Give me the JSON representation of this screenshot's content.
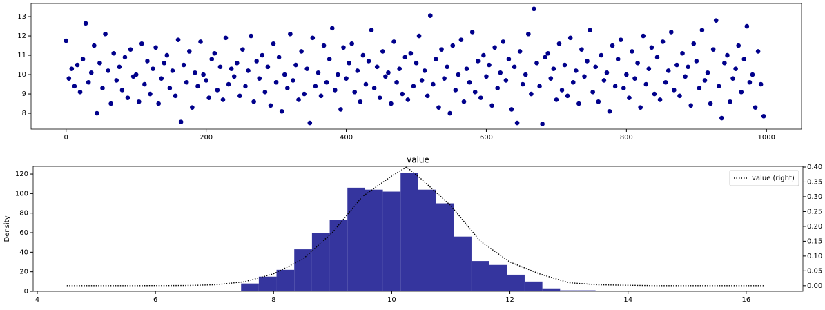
{
  "chart_data": [
    {
      "type": "scatter",
      "color": "#00008b",
      "x": [
        0,
        4,
        8,
        12,
        16,
        20,
        24,
        28,
        32,
        36,
        40,
        44,
        48,
        52,
        56,
        60,
        64,
        68,
        72,
        76,
        80,
        84,
        88,
        92,
        96,
        100,
        104,
        108,
        112,
        116,
        120,
        124,
        128,
        132,
        136,
        140,
        144,
        148,
        152,
        156,
        160,
        164,
        168,
        172,
        176,
        180,
        184,
        188,
        192,
        196,
        200,
        204,
        208,
        212,
        216,
        220,
        224,
        228,
        232,
        236,
        240,
        244,
        248,
        252,
        256,
        260,
        264,
        268,
        272,
        276,
        280,
        284,
        288,
        292,
        296,
        300,
        304,
        308,
        312,
        316,
        320,
        324,
        328,
        332,
        336,
        340,
        344,
        348,
        352,
        356,
        360,
        364,
        368,
        372,
        376,
        380,
        384,
        388,
        392,
        396,
        400,
        404,
        408,
        412,
        416,
        420,
        424,
        428,
        432,
        436,
        440,
        444,
        448,
        452,
        456,
        460,
        464,
        468,
        472,
        476,
        480,
        484,
        488,
        492,
        496,
        500,
        504,
        508,
        512,
        516,
        520,
        524,
        528,
        532,
        536,
        540,
        544,
        548,
        552,
        556,
        560,
        564,
        568,
        572,
        576,
        580,
        584,
        588,
        592,
        596,
        600,
        604,
        608,
        612,
        616,
        620,
        624,
        628,
        632,
        636,
        640,
        644,
        648,
        652,
        656,
        660,
        664,
        668,
        672,
        676,
        680,
        684,
        688,
        692,
        696,
        700,
        704,
        708,
        712,
        716,
        720,
        724,
        728,
        732,
        736,
        740,
        744,
        748,
        752,
        756,
        760,
        764,
        768,
        772,
        776,
        780,
        784,
        788,
        792,
        796,
        800,
        804,
        808,
        812,
        816,
        820,
        824,
        828,
        832,
        836,
        840,
        844,
        848,
        852,
        856,
        860,
        864,
        868,
        872,
        876,
        880,
        884,
        888,
        892,
        896,
        900,
        904,
        908,
        912,
        916,
        920,
        924,
        928,
        932,
        936,
        940,
        944,
        948,
        952,
        956,
        960,
        964,
        968,
        972,
        976,
        980,
        984,
        988,
        992,
        996
      ],
      "values": [
        11.75,
        9.8,
        10.3,
        9.4,
        10.5,
        9.1,
        10.8,
        12.65,
        9.6,
        10.1,
        11.5,
        8.0,
        10.6,
        9.3,
        12.1,
        10.2,
        8.5,
        11.1,
        9.7,
        10.4,
        9.2,
        10.9,
        8.8,
        11.3,
        9.9,
        10.0,
        8.6,
        11.6,
        9.5,
        10.7,
        9.0,
        10.3,
        11.4,
        8.5,
        9.8,
        10.6,
        11.0,
        9.3,
        10.2,
        8.9,
        11.8,
        7.55,
        10.5,
        9.6,
        11.2,
        8.3,
        10.1,
        9.4,
        11.7,
        10.0,
        9.7,
        8.8,
        10.8,
        11.1,
        9.2,
        10.4,
        8.7,
        11.9,
        9.5,
        10.3,
        9.9,
        10.6,
        8.9,
        11.3,
        9.4,
        10.2,
        12.0,
        8.6,
        10.7,
        9.8,
        11.0,
        9.1,
        10.4,
        8.4,
        11.6,
        9.6,
        10.9,
        8.1,
        10.0,
        9.3,
        12.1,
        9.7,
        10.5,
        8.7,
        11.2,
        9.0,
        10.3,
        7.5,
        11.9,
        9.4,
        10.1,
        8.9,
        11.5,
        9.6,
        10.8,
        12.4,
        9.2,
        10.0,
        8.2,
        11.4,
        9.8,
        10.6,
        11.6,
        9.1,
        10.2,
        8.6,
        11.0,
        9.5,
        10.7,
        12.3,
        9.3,
        10.4,
        8.8,
        11.2,
        9.9,
        10.1,
        8.5,
        11.7,
        9.6,
        10.3,
        9.0,
        10.9,
        8.7,
        11.1,
        9.4,
        10.6,
        12.0,
        9.7,
        10.2,
        8.9,
        13.05,
        9.5,
        10.8,
        8.3,
        11.3,
        9.8,
        10.4,
        8.0,
        11.5,
        9.2,
        10.0,
        11.8,
        8.6,
        10.3,
        9.6,
        12.2,
        9.1,
        10.7,
        8.8,
        11.0,
        9.9,
        10.5,
        8.4,
        11.4,
        9.3,
        10.1,
        11.7,
        9.7,
        10.8,
        8.2,
        10.4,
        7.5,
        11.2,
        9.5,
        10.0,
        12.1,
        9.0,
        13.4,
        10.6,
        9.4,
        7.45,
        10.9,
        11.1,
        9.8,
        10.3,
        8.7,
        11.6,
        9.2,
        10.5,
        8.9,
        11.9,
        9.6,
        10.2,
        8.5,
        11.3,
        9.9,
        10.7,
        12.3,
        9.1,
        10.4,
        8.6,
        11.0,
        9.7,
        10.1,
        8.1,
        11.5,
        9.4,
        10.8,
        11.8,
        9.3,
        10.0,
        8.8,
        11.2,
        9.8,
        10.6,
        8.3,
        12.0,
        9.5,
        10.3,
        11.4,
        9.0,
        10.9,
        8.7,
        11.7,
        9.6,
        10.2,
        12.2,
        9.2,
        10.5,
        8.9,
        11.1,
        9.9,
        10.4,
        8.4,
        11.6,
        10.7,
        9.3,
        12.3,
        9.7,
        10.1,
        8.5,
        11.3,
        12.8,
        9.4,
        7.75,
        10.6,
        11.0,
        8.6,
        9.8,
        10.3,
        11.5,
        9.1,
        10.8,
        12.5,
        9.6,
        10.0,
        8.3,
        11.2,
        9.5,
        7.85
      ],
      "xlim": [
        -50,
        1050
      ],
      "xticks": [
        0,
        200,
        400,
        600,
        800,
        1000
      ],
      "ylim": [
        7.18,
        13.68
      ],
      "yticks": [
        8,
        9,
        10,
        11,
        12,
        13
      ]
    },
    {
      "type": "histogram",
      "title": "value",
      "ylabel": "Density",
      "color": "#35359e",
      "bins": [
        7.45,
        7.75,
        8.05,
        8.35,
        8.65,
        8.95,
        9.25,
        9.55,
        9.85,
        10.15,
        10.45,
        10.75,
        11.05,
        11.35,
        11.65,
        11.95,
        12.25,
        12.55,
        12.85,
        13.15,
        13.45
      ],
      "counts": [
        8,
        15,
        22,
        43,
        60,
        73,
        106,
        104,
        102,
        121,
        104,
        90,
        56,
        31,
        27,
        17,
        10,
        3,
        1,
        1
      ],
      "xlim": [
        3.93,
        16.96
      ],
      "xticks": [
        4,
        6,
        8,
        10,
        12,
        14,
        16
      ],
      "ylim": [
        0,
        127.8
      ],
      "yticks": [
        0,
        20,
        40,
        60,
        80,
        100,
        120
      ],
      "y2lim": [
        -0.019,
        0.4023
      ],
      "y2ticks": [
        {
          "value": 0,
          "label": "0.00"
        },
        {
          "value": 0.05,
          "label": "0.05"
        },
        {
          "value": 0.1,
          "label": "0.10"
        },
        {
          "value": 0.15,
          "label": "0.15"
        },
        {
          "value": 0.2,
          "label": "0.20"
        },
        {
          "value": 0.25,
          "label": "0.25"
        },
        {
          "value": 0.3,
          "label": "0.30"
        },
        {
          "value": 0.35,
          "label": "0.35"
        },
        {
          "value": 0.4,
          "label": "0.40"
        }
      ],
      "legend": "upper right",
      "series": [
        {
          "name": "value (right)",
          "color": "#000000",
          "axis": "y2",
          "x": [
            4.5,
            5.5,
            6.5,
            7,
            7.5,
            8,
            8.5,
            9,
            9.5,
            10,
            10.25,
            10.5,
            11,
            11.5,
            12,
            12.5,
            13,
            13.5,
            14.5,
            16.3
          ],
          "values": [
            0,
            0,
            0.0006,
            0.003,
            0.013,
            0.04,
            0.09,
            0.18,
            0.3,
            0.37,
            0.4,
            0.36,
            0.27,
            0.15,
            0.08,
            0.04,
            0.01,
            0.003,
            0,
            0
          ]
        }
      ]
    }
  ]
}
